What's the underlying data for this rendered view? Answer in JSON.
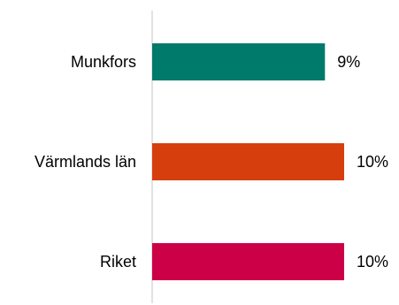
{
  "chart_data": {
    "type": "bar",
    "orientation": "horizontal",
    "title": "",
    "xlabel": "",
    "ylabel": "",
    "categories": [
      "Munkfors",
      "Värmlands län",
      "Riket"
    ],
    "values": [
      9,
      10,
      10
    ],
    "value_labels": [
      "9%",
      "10%",
      "10%"
    ],
    "bar_colors": [
      "#007A6A",
      "#D63E0E",
      "#CC0047"
    ],
    "axis_color": "#D9D9D9",
    "grid": false,
    "legend": "none"
  }
}
